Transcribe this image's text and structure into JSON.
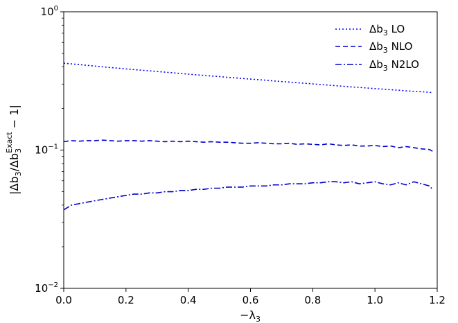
{
  "chart_data": {
    "type": "line",
    "xlabel": "−λ",
    "xlabel_sub": "3",
    "ylabel_parts": {
      "open": "|Δb",
      "sub1": "3",
      "mid": "/Δb",
      "sub2": "3",
      "sup": "Exact",
      "close": " − 1|"
    },
    "xlim": [
      0.0,
      1.2
    ],
    "ylim": [
      0.01,
      1.0
    ],
    "yscale": "log",
    "grid": false,
    "legend_position": "top-right",
    "x_ticks": [
      {
        "value": 0.0,
        "label": "0.0"
      },
      {
        "value": 0.2,
        "label": "0.2"
      },
      {
        "value": 0.4,
        "label": "0.4"
      },
      {
        "value": 0.6,
        "label": "0.6"
      },
      {
        "value": 0.8,
        "label": "0.8"
      },
      {
        "value": 1.0,
        "label": "1.0"
      },
      {
        "value": 1.2,
        "label": "1.2"
      }
    ],
    "y_ticks": [
      {
        "value": 0.01,
        "base": "10",
        "exp": "−2"
      },
      {
        "value": 0.1,
        "base": "10",
        "exp": "−1"
      },
      {
        "value": 1.0,
        "base": "10",
        "exp": "0"
      }
    ],
    "x": [
      0.0,
      0.025,
      0.05,
      0.075,
      0.1,
      0.125,
      0.15,
      0.175,
      0.2,
      0.225,
      0.25,
      0.275,
      0.3,
      0.325,
      0.35,
      0.375,
      0.4,
      0.425,
      0.45,
      0.475,
      0.5,
      0.525,
      0.55,
      0.575,
      0.6,
      0.625,
      0.65,
      0.675,
      0.7,
      0.725,
      0.75,
      0.775,
      0.8,
      0.825,
      0.85,
      0.875,
      0.9,
      0.925,
      0.95,
      0.975,
      1.0,
      1.025,
      1.05,
      1.075,
      1.1,
      1.125,
      1.15,
      1.175,
      1.185
    ],
    "series": [
      {
        "name_main": "Δb",
        "name_sub": "3",
        "name_tail": " LO",
        "color": "#0000ff",
        "dash": "2,3",
        "values": [
          0.425,
          0.42,
          0.415,
          0.41,
          0.405,
          0.4,
          0.395,
          0.391,
          0.386,
          0.382,
          0.378,
          0.374,
          0.37,
          0.366,
          0.362,
          0.358,
          0.354,
          0.35,
          0.347,
          0.343,
          0.34,
          0.336,
          0.333,
          0.329,
          0.326,
          0.323,
          0.32,
          0.316,
          0.313,
          0.31,
          0.307,
          0.304,
          0.301,
          0.298,
          0.295,
          0.292,
          0.289,
          0.286,
          0.284,
          0.281,
          0.278,
          0.276,
          0.273,
          0.271,
          0.268,
          0.266,
          0.264,
          0.262,
          0.26
        ]
      },
      {
        "name_main": "Δb",
        "name_sub": "3",
        "name_tail": " NLO",
        "color": "#0000cd",
        "dash": "7,4",
        "values": [
          0.115,
          0.117,
          0.116,
          0.117,
          0.117,
          0.118,
          0.117,
          0.116,
          0.117,
          0.117,
          0.116,
          0.117,
          0.116,
          0.115,
          0.116,
          0.115,
          0.116,
          0.115,
          0.114,
          0.115,
          0.114,
          0.114,
          0.113,
          0.112,
          0.112,
          0.113,
          0.112,
          0.111,
          0.111,
          0.112,
          0.11,
          0.111,
          0.11,
          0.109,
          0.111,
          0.109,
          0.108,
          0.109,
          0.107,
          0.107,
          0.108,
          0.106,
          0.107,
          0.104,
          0.106,
          0.104,
          0.102,
          0.101,
          0.098
        ]
      },
      {
        "name_main": "Δb",
        "name_sub": "3",
        "name_tail": " N2LO",
        "color": "#0000cd",
        "dash": "9,3,2,3",
        "values": [
          0.037,
          0.04,
          0.041,
          0.042,
          0.043,
          0.044,
          0.045,
          0.046,
          0.047,
          0.048,
          0.048,
          0.049,
          0.049,
          0.05,
          0.05,
          0.051,
          0.051,
          0.052,
          0.052,
          0.053,
          0.053,
          0.054,
          0.054,
          0.054,
          0.055,
          0.055,
          0.055,
          0.056,
          0.056,
          0.057,
          0.057,
          0.057,
          0.058,
          0.058,
          0.059,
          0.059,
          0.058,
          0.059,
          0.057,
          0.058,
          0.059,
          0.057,
          0.056,
          0.058,
          0.056,
          0.059,
          0.057,
          0.055,
          0.052
        ]
      }
    ]
  }
}
